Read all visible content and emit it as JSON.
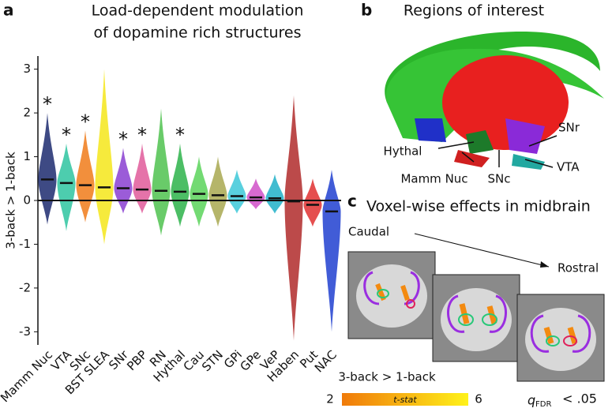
{
  "panels": {
    "a": "a",
    "b": "b",
    "c": "c"
  },
  "chart_data": {
    "type": "violin",
    "title": [
      "Load-dependent modulation",
      "of dopamine rich structures"
    ],
    "y_label": "3-back > 1-back",
    "categories": [
      "Mamm Nuc",
      "VTA",
      "SNc",
      "BST SLEA",
      "SNr",
      "PBP",
      "RN",
      "Hythal",
      "Cau",
      "STN",
      "GPi",
      "GPe",
      "VeP",
      "Haben",
      "Put",
      "NAC"
    ],
    "values": [
      0.48,
      0.4,
      0.35,
      0.3,
      0.28,
      0.25,
      0.22,
      0.2,
      0.15,
      0.12,
      0.1,
      0.07,
      0.05,
      -0.02,
      -0.1,
      -0.25
    ],
    "min": [
      -0.55,
      -0.7,
      -0.5,
      -1.0,
      -0.3,
      -0.3,
      -0.8,
      -0.6,
      -0.6,
      -0.6,
      -0.3,
      -0.2,
      -0.3,
      -3.2,
      -0.6,
      -3.0
    ],
    "max": [
      2.0,
      1.3,
      1.6,
      3.0,
      1.2,
      1.3,
      2.1,
      1.3,
      1.0,
      1.0,
      0.7,
      0.5,
      0.6,
      2.4,
      0.5,
      0.7
    ],
    "colors": [
      "#1c2a6e",
      "#2ec4a0",
      "#f07b1a",
      "#f5e61a",
      "#8a3fd1",
      "#e05a9a",
      "#4fc24f",
      "#2db34a",
      "#5ad35a",
      "#a8a850",
      "#3cc8d8",
      "#d050c8",
      "#20b0c8",
      "#b02a2a",
      "#e03030",
      "#2040d0"
    ],
    "stars": [
      "*",
      "*",
      "*",
      null,
      "*",
      "*",
      null,
      "*",
      null,
      null,
      null,
      null,
      null,
      null,
      null,
      null
    ],
    "ylim": [
      -3.3,
      3.3
    ],
    "yticks": [
      -3,
      -2,
      -1,
      0,
      1,
      2,
      3
    ]
  },
  "roi": {
    "title": "Regions of interest",
    "labels": [
      "SNr",
      "Hythal",
      "Mamm Nuc",
      "SNc",
      "VTA"
    ]
  },
  "midbrain": {
    "title": "Voxel-wise effects in midbrain",
    "caudal": "Caudal",
    "rostral": "Rostral",
    "colorbar_title": "3-back > 1-back",
    "colorbar_label": "t-stat",
    "colorbar_ticks": [
      2,
      6
    ],
    "q": "q",
    "q_sub": "FDR",
    "threshold": "< .05"
  }
}
